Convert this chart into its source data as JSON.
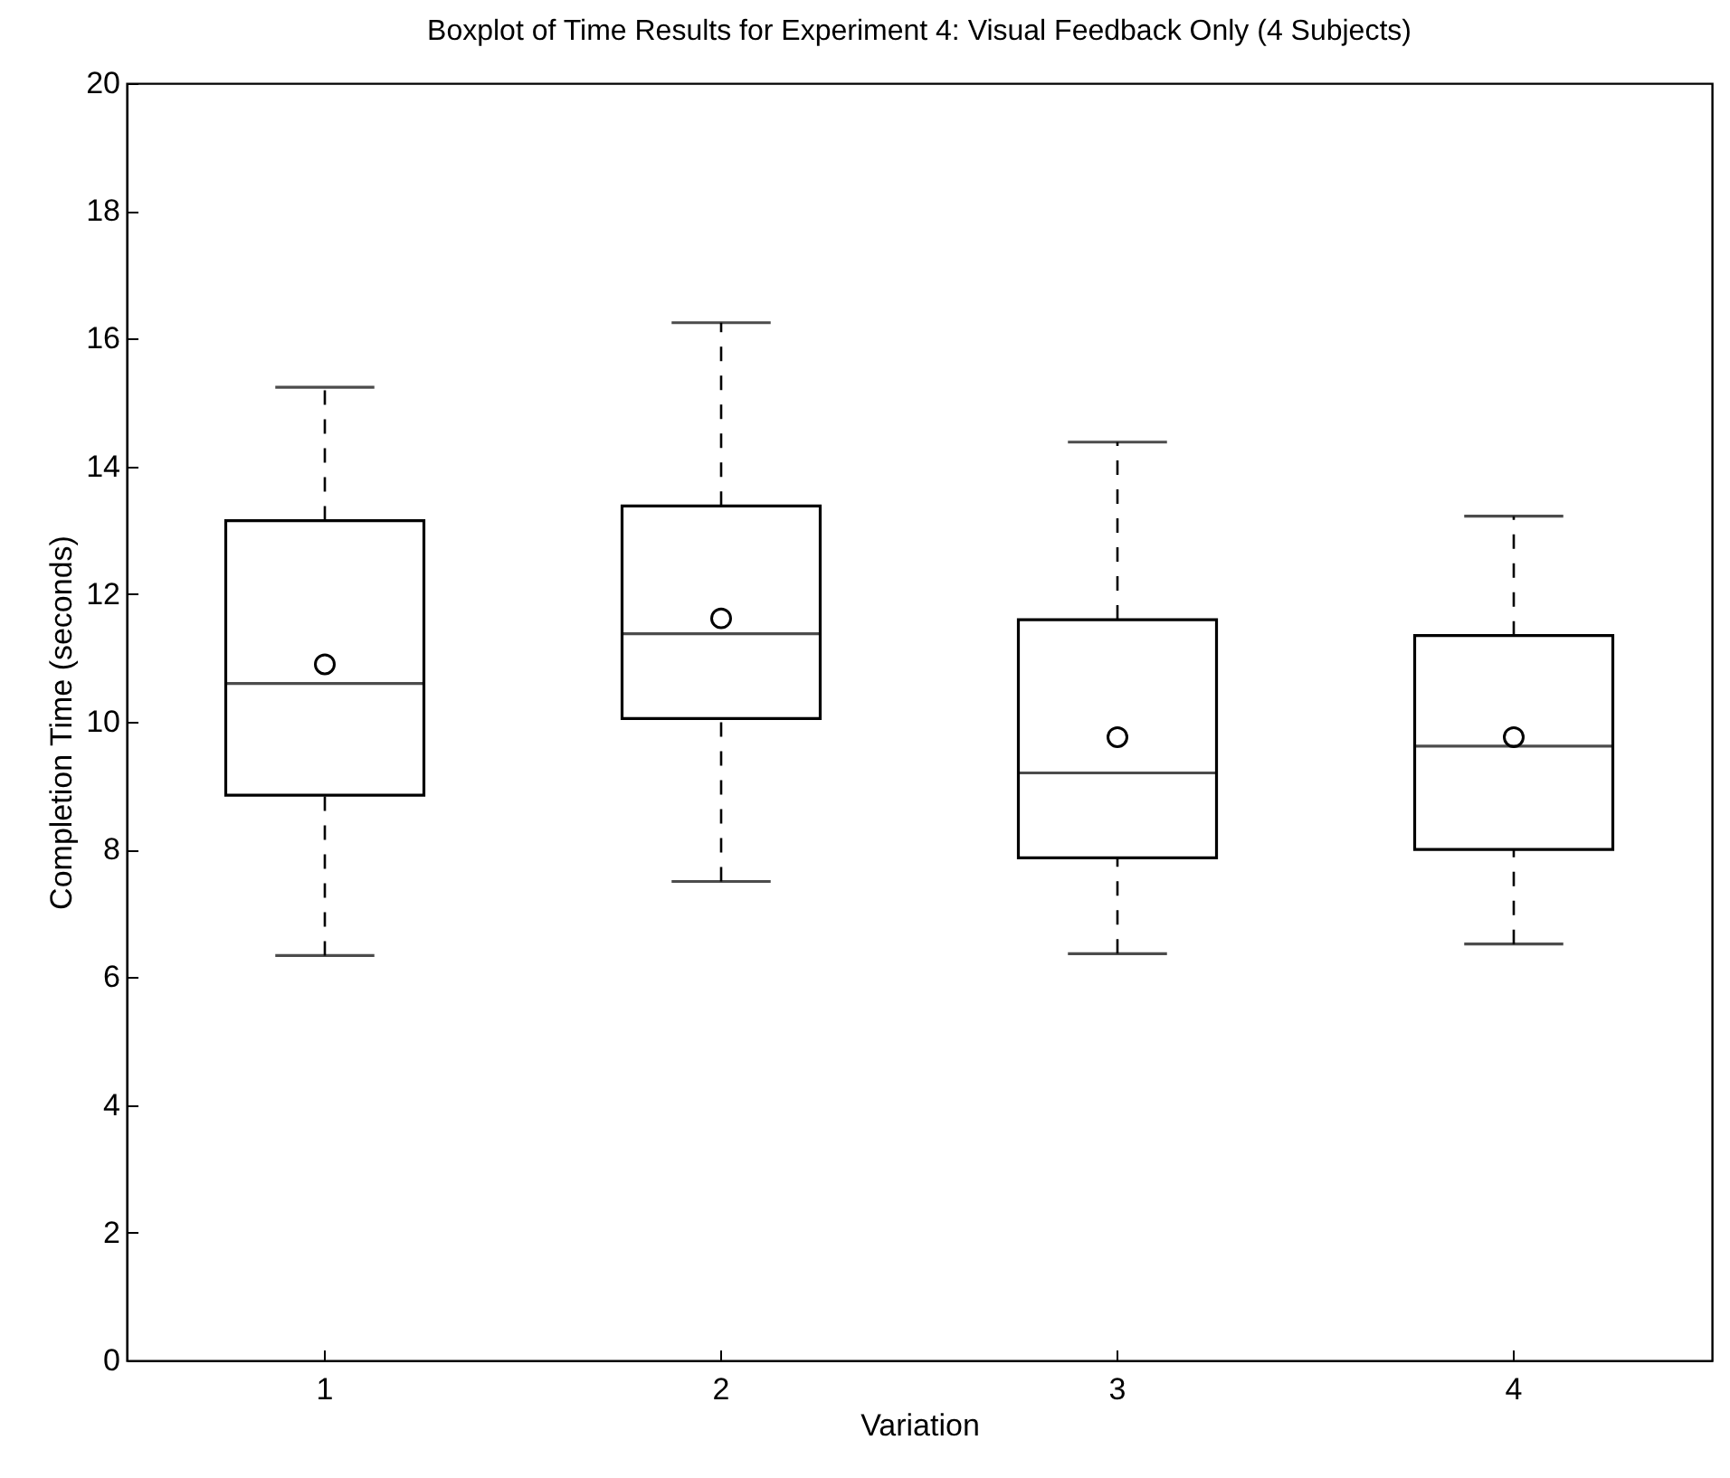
{
  "chart_data": {
    "type": "box",
    "title": "Boxplot of Time Results for Experiment 4: Visual Feedback Only (4 Subjects)",
    "xlabel": "Variation",
    "ylabel": "Completion Time (seconds)",
    "categories": [
      "1",
      "2",
      "3",
      "4"
    ],
    "boxes": [
      {
        "low": 6.34,
        "q1": 8.85,
        "median": 10.6,
        "q3": 13.15,
        "high": 15.24,
        "mean": 10.9
      },
      {
        "low": 7.5,
        "q1": 10.05,
        "median": 11.38,
        "q3": 13.38,
        "high": 16.25,
        "mean": 11.62
      },
      {
        "low": 6.37,
        "q1": 7.87,
        "median": 9.2,
        "q3": 11.6,
        "high": 14.38,
        "mean": 9.76
      },
      {
        "low": 6.52,
        "q1": 8.0,
        "median": 9.62,
        "q3": 11.35,
        "high": 13.22,
        "mean": 9.76
      }
    ],
    "ylim": [
      0,
      20
    ],
    "yticks": [
      0,
      2,
      4,
      6,
      8,
      10,
      12,
      14,
      16,
      18,
      20
    ],
    "grid": false
  }
}
